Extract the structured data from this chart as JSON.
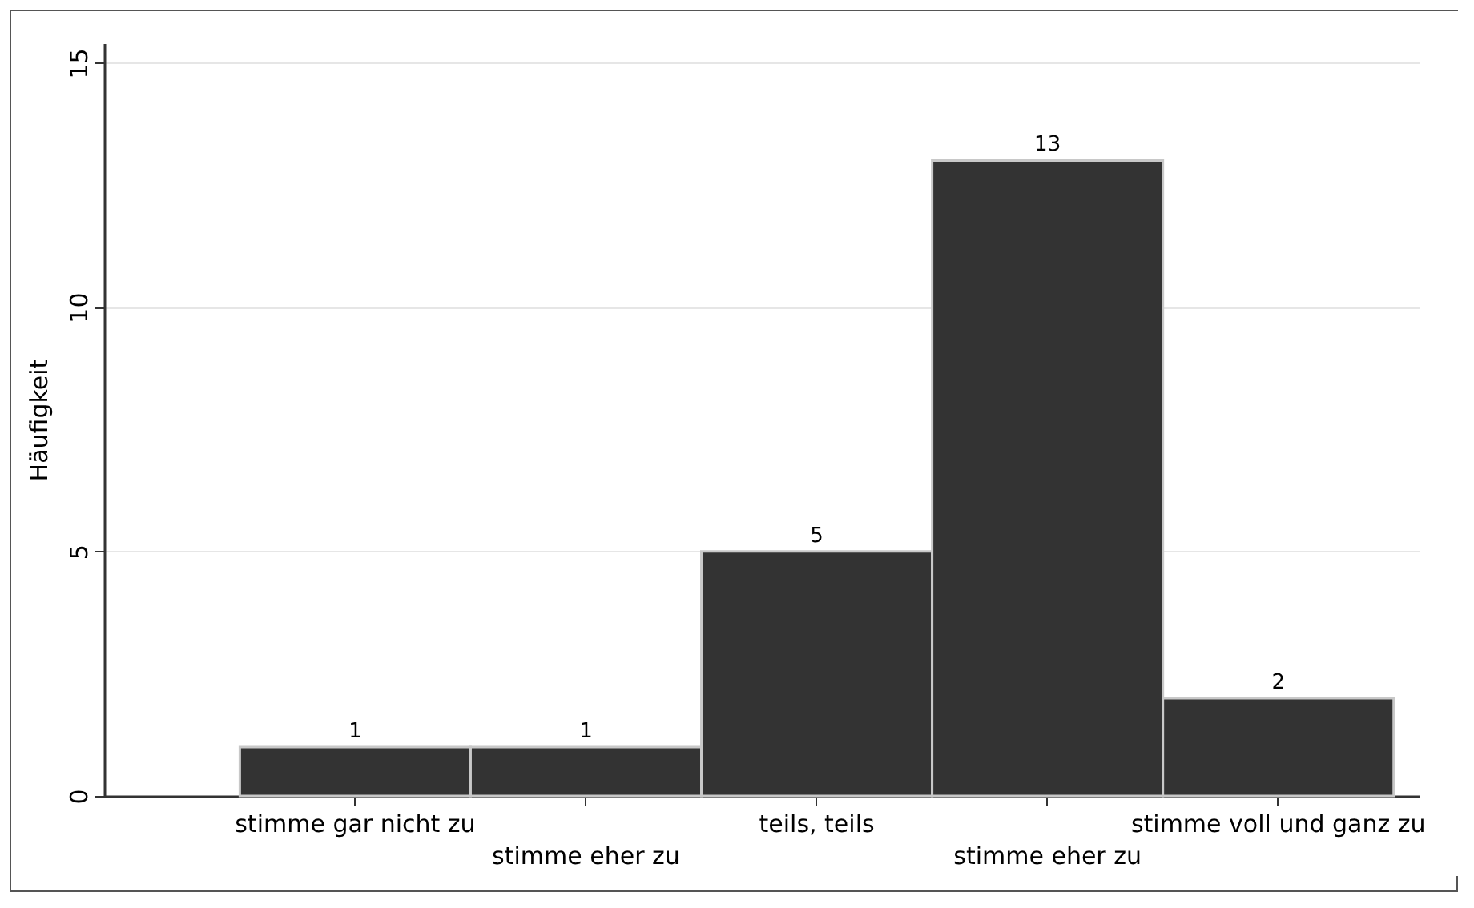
{
  "chart_data": {
    "type": "bar",
    "ylabel": "Häufigkeit",
    "categories": [
      "stimme gar nicht zu",
      "stimme eher zu",
      "teils, teils",
      "stimme eher zu",
      "stimme voll und ganz zu"
    ],
    "values": [
      1,
      1,
      5,
      13,
      2
    ],
    "color": "#333333",
    "ylim": [
      0,
      15.4
    ],
    "yticks": [
      0,
      5,
      10,
      15
    ],
    "grid": "y",
    "data_labels": true
  }
}
